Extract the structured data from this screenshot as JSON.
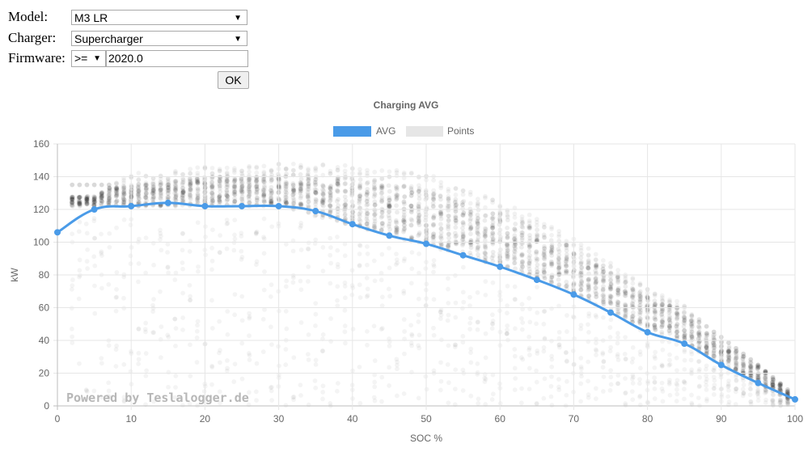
{
  "form": {
    "model_label": "Model:",
    "model_value": "M3 LR",
    "charger_label": "Charger:",
    "charger_value": "Supercharger",
    "firmware_label": "Firmware:",
    "firmware_operator": ">=",
    "firmware_value": "2020.0",
    "ok_label": "OK"
  },
  "chart_data": {
    "type": "line",
    "title": "Charging AVG",
    "xlabel": "SOC %",
    "ylabel": "kW",
    "xlim": [
      0,
      100
    ],
    "ylim": [
      0,
      160
    ],
    "x_ticks": [
      0,
      10,
      20,
      30,
      40,
      50,
      60,
      70,
      80,
      90,
      100
    ],
    "y_ticks": [
      0,
      20,
      40,
      60,
      80,
      100,
      120,
      140,
      160
    ],
    "grid": true,
    "legend_position": "top",
    "watermark": "Powered by Teslalogger.de",
    "series": [
      {
        "name": "AVG",
        "color": "#4a9be8",
        "x": [
          0,
          5,
          10,
          15,
          20,
          25,
          30,
          35,
          40,
          45,
          50,
          55,
          60,
          65,
          70,
          75,
          80,
          85,
          90,
          95,
          100
        ],
        "values": [
          106,
          120,
          122,
          124,
          122,
          122,
          122,
          119,
          111,
          104,
          99,
          92,
          85,
          77,
          68,
          57,
          45,
          38,
          25,
          14,
          4
        ]
      },
      {
        "name": "Points",
        "color": "#e6e6e6",
        "type": "scatter",
        "point_cloud": {
          "x_range": [
            2,
            99
          ],
          "upper_envelope": [
            [
              5,
              128
            ],
            [
              10,
              142
            ],
            [
              20,
              146
            ],
            [
              30,
              148
            ],
            [
              40,
              147
            ],
            [
              50,
              142
            ],
            [
              55,
              134
            ],
            [
              60,
              125
            ],
            [
              65,
              115
            ],
            [
              70,
              102
            ],
            [
              75,
              88
            ],
            [
              80,
              72
            ],
            [
              85,
              62
            ],
            [
              90,
              40
            ],
            [
              95,
              25
            ],
            [
              99,
              10
            ]
          ],
          "core_band": [
            [
              10,
              122,
              135
            ],
            [
              20,
              122,
              140
            ],
            [
              30,
              122,
              142
            ],
            [
              40,
              110,
              140
            ],
            [
              50,
              98,
              132
            ],
            [
              55,
              92,
              125
            ],
            [
              60,
              85,
              118
            ],
            [
              65,
              78,
              108
            ],
            [
              70,
              68,
              96
            ],
            [
              75,
              57,
              82
            ],
            [
              80,
              47,
              68
            ],
            [
              85,
              38,
              58
            ],
            [
              90,
              25,
              42
            ],
            [
              95,
              14,
              25
            ],
            [
              99,
              4,
              10
            ]
          ]
        }
      }
    ]
  }
}
